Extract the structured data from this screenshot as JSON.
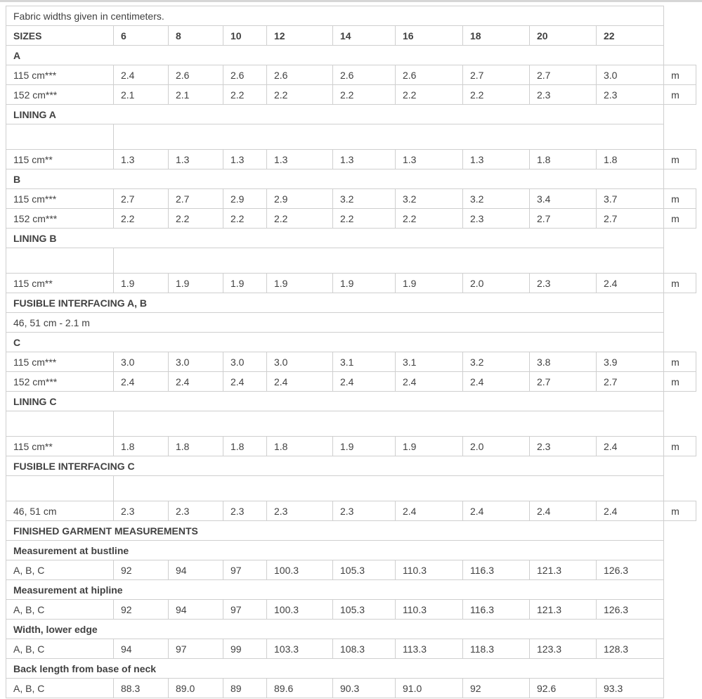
{
  "table": {
    "rows": [
      {
        "type": "note",
        "label": "Fabric widths given in centimeters."
      },
      {
        "type": "header",
        "label": "SIZES",
        "sizes": [
          "6",
          "8",
          "10",
          "12",
          "14",
          "16",
          "18",
          "20",
          "22"
        ]
      },
      {
        "type": "section",
        "label": "A"
      },
      {
        "type": "data",
        "label": "115 cm***",
        "values": [
          "2.4",
          "2.6",
          "2.6",
          "2.6",
          "2.6",
          "2.6",
          "2.7",
          "2.7",
          "3.0"
        ],
        "unit": "m"
      },
      {
        "type": "data",
        "label": "152 cm***",
        "values": [
          "2.1",
          "2.1",
          "2.2",
          "2.2",
          "2.2",
          "2.2",
          "2.2",
          "2.3",
          "2.3"
        ],
        "unit": "m"
      },
      {
        "type": "section",
        "label": "LINING A"
      },
      {
        "type": "spacer"
      },
      {
        "type": "data",
        "label": "115 cm**",
        "values": [
          "1.3",
          "1.3",
          "1.3",
          "1.3",
          "1.3",
          "1.3",
          "1.3",
          "1.8",
          "1.8"
        ],
        "unit": "m"
      },
      {
        "type": "section",
        "label": "B"
      },
      {
        "type": "data",
        "label": "115 cm***",
        "values": [
          "2.7",
          "2.7",
          "2.9",
          "2.9",
          "3.2",
          "3.2",
          "3.2",
          "3.4",
          "3.7"
        ],
        "unit": "m"
      },
      {
        "type": "data",
        "label": "152 cm***",
        "values": [
          "2.2",
          "2.2",
          "2.2",
          "2.2",
          "2.2",
          "2.2",
          "2.3",
          "2.7",
          "2.7"
        ],
        "unit": "m"
      },
      {
        "type": "section",
        "label": "LINING B"
      },
      {
        "type": "spacer"
      },
      {
        "type": "data",
        "label": "115 cm**",
        "values": [
          "1.9",
          "1.9",
          "1.9",
          "1.9",
          "1.9",
          "1.9",
          "2.0",
          "2.3",
          "2.4"
        ],
        "unit": "m"
      },
      {
        "type": "section",
        "label": "FUSIBLE INTERFACING A, B"
      },
      {
        "type": "note",
        "label": "46, 51 cm - 2.1 m"
      },
      {
        "type": "section",
        "label": "C"
      },
      {
        "type": "data",
        "label": "115 cm***",
        "values": [
          "3.0",
          "3.0",
          "3.0",
          "3.0",
          "3.1",
          "3.1",
          "3.2",
          "3.8",
          "3.9"
        ],
        "unit": "m"
      },
      {
        "type": "data",
        "label": "152 cm***",
        "values": [
          "2.4",
          "2.4",
          "2.4",
          "2.4",
          "2.4",
          "2.4",
          "2.4",
          "2.7",
          "2.7"
        ],
        "unit": "m"
      },
      {
        "type": "section",
        "label": "LINING C"
      },
      {
        "type": "spacer"
      },
      {
        "type": "data",
        "label": "115 cm**",
        "values": [
          "1.8",
          "1.8",
          "1.8",
          "1.8",
          "1.9",
          "1.9",
          "2.0",
          "2.3",
          "2.4"
        ],
        "unit": "m"
      },
      {
        "type": "section",
        "label": "FUSIBLE INTERFACING C"
      },
      {
        "type": "spacer"
      },
      {
        "type": "data",
        "label": "46, 51 cm",
        "values": [
          "2.3",
          "2.3",
          "2.3",
          "2.3",
          "2.3",
          "2.4",
          "2.4",
          "2.4",
          "2.4"
        ],
        "unit": "m"
      },
      {
        "type": "section",
        "label": "FINISHED GARMENT MEASUREMENTS"
      },
      {
        "type": "section",
        "label": "Measurement at bustline"
      },
      {
        "type": "data",
        "label": "A, B, C",
        "values": [
          "92",
          "94",
          "97",
          "100.3",
          "105.3",
          "110.3",
          "116.3",
          "121.3",
          "126.3"
        ]
      },
      {
        "type": "section",
        "label": "Measurement at hipline"
      },
      {
        "type": "data",
        "label": "A, B, C",
        "values": [
          "92",
          "94",
          "97",
          "100.3",
          "105.3",
          "110.3",
          "116.3",
          "121.3",
          "126.3"
        ]
      },
      {
        "type": "section",
        "label": "Width, lower edge"
      },
      {
        "type": "data",
        "label": "A, B, C",
        "values": [
          "94",
          "97",
          "99",
          "103.3",
          "108.3",
          "113.3",
          "118.3",
          "123.3",
          "128.3"
        ]
      },
      {
        "type": "section",
        "label": "Back length from base of neck"
      },
      {
        "type": "data",
        "label": "A, B, C",
        "values": [
          "88.3",
          "89.0",
          "89",
          "89.6",
          "90.3",
          "91.0",
          "92",
          "92.6",
          "93.3"
        ]
      }
    ]
  }
}
